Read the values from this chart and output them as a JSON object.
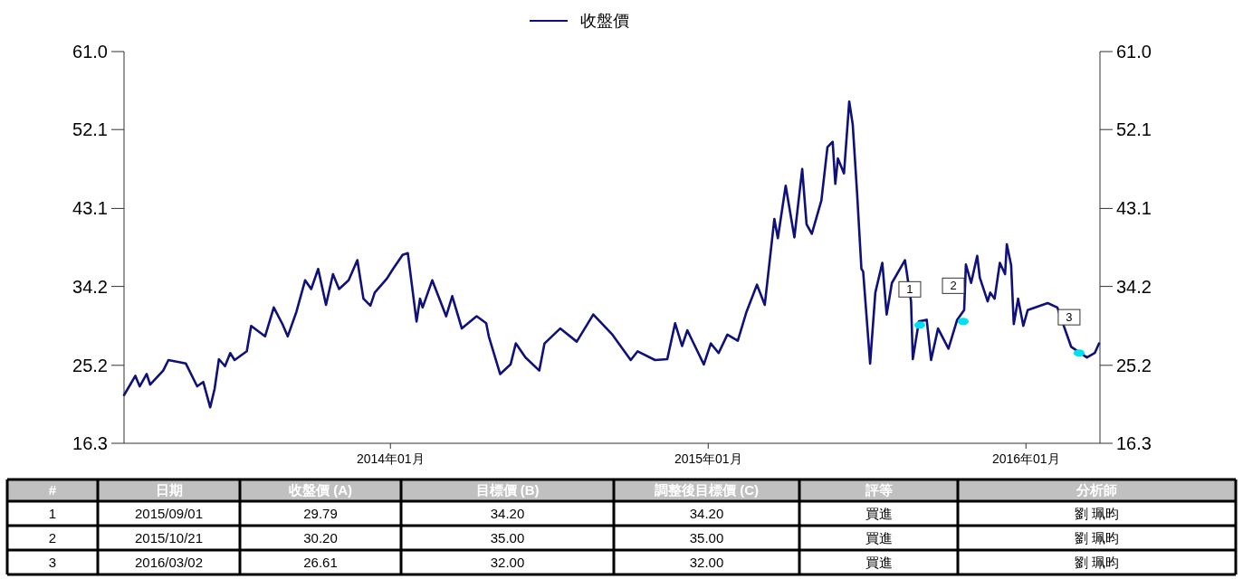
{
  "chart_data": [
    {
      "type": "line",
      "legend": "top",
      "grid": false,
      "line_style": "solid",
      "xlim": [
        "2013-03-01",
        "2016-03-26"
      ],
      "xticks": [
        {
          "value": "2014-01-01",
          "label": "2014年01月"
        },
        {
          "value": "2015-01-01",
          "label": "2015年01月"
        },
        {
          "value": "2016-01-01",
          "label": "2016年01月"
        }
      ],
      "ylim": [
        16.3,
        61
      ],
      "yticks": [
        16.3,
        25.2,
        34.2,
        43.1,
        52.1,
        {
          "value": 61,
          "label": "61.0"
        }
      ],
      "y2lim": [
        16.3,
        61
      ],
      "y2ticks": [
        16.3,
        25.2,
        34.2,
        43.1,
        52.1,
        {
          "value": 61,
          "label": "61.0"
        }
      ],
      "series": [
        {
          "name": "收盤價",
          "color": "#10107a",
          "type": "line",
          "x": [
            "2013-03-01",
            "2013-03-07",
            "2013-03-14",
            "2013-03-19",
            "2013-03-27",
            "2013-03-31",
            "2013-04-15",
            "2013-04-21",
            "2013-05-11",
            "2013-05-24",
            "2013-05-31",
            "2013-06-08",
            "2013-06-13",
            "2013-06-18",
            "2013-06-25",
            "2013-07-01",
            "2013-07-06",
            "2013-07-20",
            "2013-07-25",
            "2013-08-10",
            "2013-08-20",
            "2013-08-30",
            "2013-09-05",
            "2013-09-15",
            "2013-09-25",
            "2013-10-02",
            "2013-10-10",
            "2013-10-19",
            "2013-10-27",
            "2013-11-03",
            "2013-11-14",
            "2013-11-24",
            "2013-12-01",
            "2013-12-09",
            "2013-12-14",
            "2013-12-28",
            "2014-01-04",
            "2014-01-15",
            "2014-01-21",
            "2014-01-31",
            "2014-02-04",
            "2014-02-07",
            "2014-02-18",
            "2014-03-06",
            "2014-03-13",
            "2014-03-24",
            "2014-04-10",
            "2014-04-21",
            "2014-04-24",
            "2014-05-07",
            "2014-05-19",
            "2014-05-25",
            "2014-06-05",
            "2014-06-21",
            "2014-06-27",
            "2014-07-15",
            "2014-08-03",
            "2014-08-22",
            "2014-09-13",
            "2014-10-04",
            "2014-10-12",
            "2014-11-01",
            "2014-11-15",
            "2014-11-24",
            "2014-12-02",
            "2014-12-08",
            "2014-12-27",
            "2015-01-04",
            "2015-01-13",
            "2015-01-23",
            "2015-02-04",
            "2015-02-14",
            "2015-02-26",
            "2015-03-07",
            "2015-03-18",
            "2015-03-22",
            "2015-03-31",
            "2015-04-10",
            "2015-04-19",
            "2015-04-24",
            "2015-04-30",
            "2015-05-11",
            "2015-05-18",
            "2015-05-24",
            "2015-05-27",
            "2015-05-30",
            "2015-06-06",
            "2015-06-12",
            "2015-06-16",
            "2015-06-21",
            "2015-06-26",
            "2015-06-28",
            "2015-07-06",
            "2015-07-12",
            "2015-07-20",
            "2015-07-25",
            "2015-07-31",
            "2015-08-15",
            "2015-08-22",
            "2015-08-24",
            "2015-08-31",
            "2015-09-09",
            "2015-09-14",
            "2015-09-22",
            "2015-10-04",
            "2015-10-14",
            "2015-10-22",
            "2015-10-24",
            "2015-10-30",
            "2015-11-06",
            "2015-11-09",
            "2015-11-18",
            "2015-11-21",
            "2015-11-26",
            "2015-12-02",
            "2015-12-08",
            "2015-12-10",
            "2015-12-15",
            "2015-12-18",
            "2015-12-23",
            "2015-12-29",
            "2016-01-03",
            "2016-01-26",
            "2016-02-06",
            "2016-02-22",
            "2016-03-11",
            "2016-03-20",
            "2016-03-25"
          ],
          "values": [
            21.8,
            22.8,
            24.0,
            22.8,
            24.2,
            23.0,
            24.6,
            25.8,
            25.4,
            22.8,
            23.3,
            20.4,
            22.5,
            25.9,
            25.1,
            26.6,
            25.8,
            26.8,
            29.7,
            28.5,
            31.8,
            29.9,
            28.5,
            31.3,
            34.9,
            33.9,
            36.2,
            32.1,
            35.6,
            33.9,
            34.9,
            37.2,
            32.8,
            32.0,
            33.5,
            35.1,
            36.2,
            37.8,
            38.0,
            30.2,
            32.8,
            31.8,
            34.9,
            30.8,
            33.1,
            29.4,
            30.8,
            30.0,
            28.5,
            24.2,
            25.3,
            27.7,
            26.1,
            24.6,
            27.7,
            29.4,
            27.9,
            31.0,
            28.7,
            25.8,
            26.8,
            25.8,
            25.9,
            30.0,
            27.4,
            29.2,
            25.3,
            27.7,
            26.6,
            28.7,
            28.0,
            31.3,
            34.4,
            32.1,
            41.9,
            39.7,
            45.7,
            39.8,
            47.6,
            41.3,
            40.2,
            44.0,
            50.1,
            50.7,
            45.9,
            48.8,
            47.1,
            55.3,
            52.7,
            44.9,
            36.2,
            35.9,
            25.4,
            33.5,
            36.9,
            31.0,
            34.6,
            37.2,
            32.5,
            25.9,
            30.2,
            30.4,
            25.8,
            29.4,
            27.1,
            30.4,
            31.5,
            36.7,
            34.6,
            37.7,
            35.2,
            32.5,
            33.5,
            32.8,
            36.9,
            35.6,
            39.0,
            36.6,
            29.9,
            32.8,
            29.7,
            31.5,
            32.3,
            31.8,
            27.3,
            26.1,
            26.6,
            27.7
          ]
        },
        {
          "type": "scatter",
          "color": "#00e0f0",
          "marker": "circle",
          "x": [
            "2015-09-01",
            "2015-10-21",
            "2016-03-02"
          ],
          "values": [
            29.79,
            30.2,
            26.61
          ]
        }
      ],
      "annotations": [
        {
          "text": "1",
          "x": "2015-09-01",
          "y": 29.79
        },
        {
          "text": "2",
          "x": "2015-10-21",
          "y": 30.2
        },
        {
          "text": "3",
          "x": "2016-03-02",
          "y": 26.61
        }
      ]
    },
    {
      "type": "other",
      "categories": [
        "#",
        "日期",
        "收盤價 (A)",
        "目標價 (B)",
        "調整後目標價 (C)",
        "評等",
        "分析師"
      ],
      "annotations": [
        "1",
        "2015/09/01",
        "29.79",
        "34.20",
        "34.20",
        "買進",
        "劉 珮昀",
        "2",
        "2015/10/21",
        "30.20",
        "35.00",
        "35.00",
        "買進",
        "劉 珮昀",
        "3",
        "2016/03/02",
        "26.61",
        "32.00",
        "32.00",
        "買進",
        "劉 珮昀"
      ]
    }
  ]
}
